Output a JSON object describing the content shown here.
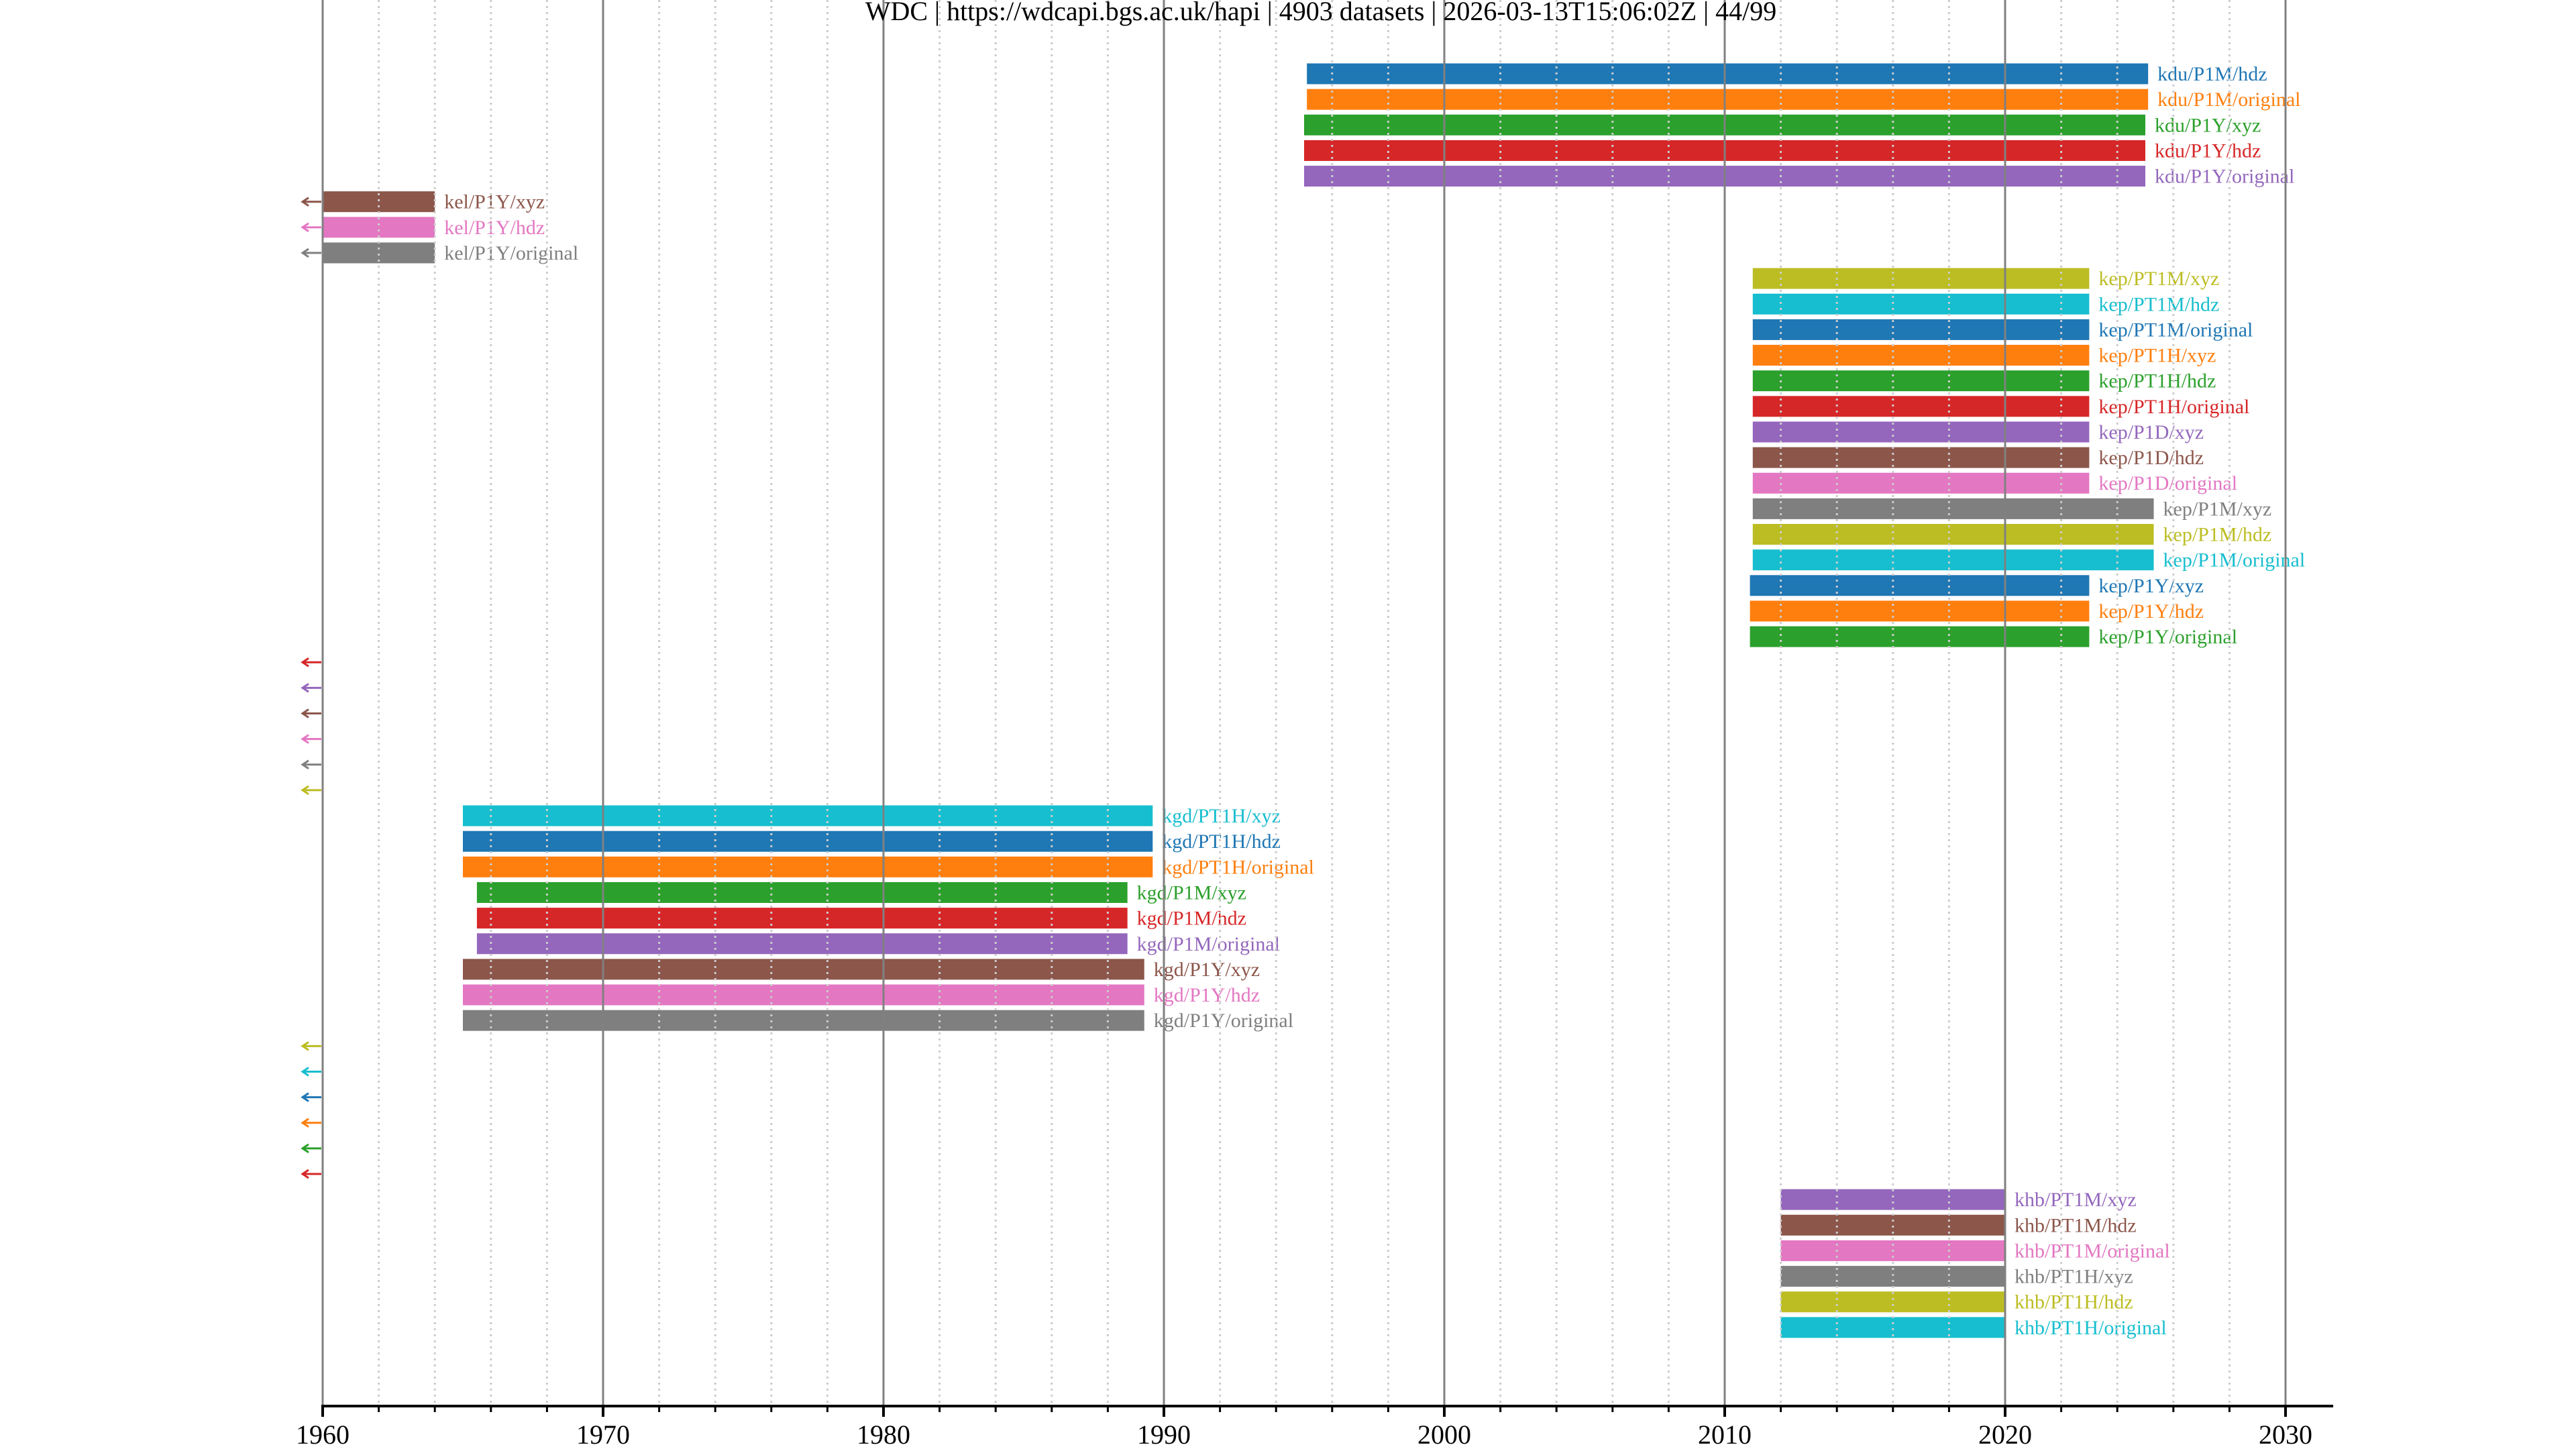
{
  "chart_data": {
    "type": "timeline",
    "title": "WDC | https://wdcapi.bgs.ac.uk/hapi | 4903 datasets | 2026-03-13T15:06:02Z | 44/99",
    "xlabel": "",
    "ylabel": "",
    "xlim": [
      1960,
      2031.7
    ],
    "x_major_ticks": [
      1960,
      1970,
      1980,
      1990,
      2000,
      2010,
      2020,
      2030
    ],
    "x_tick_labels": [
      "1960",
      "1970",
      "1980",
      "1990",
      "2000",
      "2010",
      "2020",
      "2030"
    ],
    "x_minor_step_years": 2,
    "grid": "major solid, minor dotted",
    "legend": "none (labels beside bars)",
    "before_range_marker": "left-arrow",
    "rows": [
      {
        "label": "kdu/P1M/hdz",
        "start": 1995.1,
        "end": 2025.1,
        "color": "#1f77b4"
      },
      {
        "label": "kdu/P1M/original",
        "start": 1995.1,
        "end": 2025.1,
        "color": "#ff7f0e"
      },
      {
        "label": "kdu/P1Y/xyz",
        "start": 1995.0,
        "end": 2025.0,
        "color": "#2ca02c"
      },
      {
        "label": "kdu/P1Y/hdz",
        "start": 1995.0,
        "end": 2025.0,
        "color": "#d62728"
      },
      {
        "label": "kdu/P1Y/original",
        "start": 1995.0,
        "end": 2025.0,
        "color": "#9467bd"
      },
      {
        "label": "kel/P1Y/xyz",
        "start": null,
        "end": 1964.0,
        "color": "#8c564b",
        "before_range": true
      },
      {
        "label": "kel/P1Y/hdz",
        "start": null,
        "end": 1964.0,
        "color": "#e377c2",
        "before_range": true
      },
      {
        "label": "kel/P1Y/original",
        "start": null,
        "end": 1964.0,
        "color": "#7f7f7f",
        "before_range": true
      },
      {
        "label": "kep/PT1M/xyz",
        "start": 2011.0,
        "end": 2023.0,
        "color": "#bcbd22"
      },
      {
        "label": "kep/PT1M/hdz",
        "start": 2011.0,
        "end": 2023.0,
        "color": "#17becf"
      },
      {
        "label": "kep/PT1M/original",
        "start": 2011.0,
        "end": 2023.0,
        "color": "#1f77b4"
      },
      {
        "label": "kep/PT1H/xyz",
        "start": 2011.0,
        "end": 2023.0,
        "color": "#ff7f0e"
      },
      {
        "label": "kep/PT1H/hdz",
        "start": 2011.0,
        "end": 2023.0,
        "color": "#2ca02c"
      },
      {
        "label": "kep/PT1H/original",
        "start": 2011.0,
        "end": 2023.0,
        "color": "#d62728"
      },
      {
        "label": "kep/P1D/xyz",
        "start": 2011.0,
        "end": 2023.0,
        "color": "#9467bd"
      },
      {
        "label": "kep/P1D/hdz",
        "start": 2011.0,
        "end": 2023.0,
        "color": "#8c564b"
      },
      {
        "label": "kep/P1D/original",
        "start": 2011.0,
        "end": 2023.0,
        "color": "#e377c2"
      },
      {
        "label": "kep/P1M/xyz",
        "start": 2011.0,
        "end": 2025.3,
        "color": "#7f7f7f"
      },
      {
        "label": "kep/P1M/hdz",
        "start": 2011.0,
        "end": 2025.3,
        "color": "#bcbd22"
      },
      {
        "label": "kep/P1M/original",
        "start": 2011.0,
        "end": 2025.3,
        "color": "#17becf"
      },
      {
        "label": "kep/P1Y/xyz",
        "start": 2010.9,
        "end": 2023.0,
        "color": "#1f77b4"
      },
      {
        "label": "kep/P1Y/hdz",
        "start": 2010.9,
        "end": 2023.0,
        "color": "#ff7f0e"
      },
      {
        "label": "kep/P1Y/original",
        "start": 2010.9,
        "end": 2023.0,
        "color": "#2ca02c"
      },
      {
        "label": "",
        "start": null,
        "end": null,
        "color": "#d62728",
        "before_range": true
      },
      {
        "label": "",
        "start": null,
        "end": null,
        "color": "#9467bd",
        "before_range": true
      },
      {
        "label": "",
        "start": null,
        "end": null,
        "color": "#8c564b",
        "before_range": true
      },
      {
        "label": "",
        "start": null,
        "end": null,
        "color": "#e377c2",
        "before_range": true
      },
      {
        "label": "",
        "start": null,
        "end": null,
        "color": "#7f7f7f",
        "before_range": true
      },
      {
        "label": "",
        "start": null,
        "end": null,
        "color": "#bcbd22",
        "before_range": true
      },
      {
        "label": "kgd/PT1H/xyz",
        "start": 1965.0,
        "end": 1989.6,
        "color": "#17becf"
      },
      {
        "label": "kgd/PT1H/hdz",
        "start": 1965.0,
        "end": 1989.6,
        "color": "#1f77b4"
      },
      {
        "label": "kgd/PT1H/original",
        "start": 1965.0,
        "end": 1989.6,
        "color": "#ff7f0e"
      },
      {
        "label": "kgd/P1M/xyz",
        "start": 1965.5,
        "end": 1988.7,
        "color": "#2ca02c"
      },
      {
        "label": "kgd/P1M/hdz",
        "start": 1965.5,
        "end": 1988.7,
        "color": "#d62728"
      },
      {
        "label": "kgd/P1M/original",
        "start": 1965.5,
        "end": 1988.7,
        "color": "#9467bd"
      },
      {
        "label": "kgd/P1Y/xyz",
        "start": 1965.0,
        "end": 1989.3,
        "color": "#8c564b"
      },
      {
        "label": "kgd/P1Y/hdz",
        "start": 1965.0,
        "end": 1989.3,
        "color": "#e377c2"
      },
      {
        "label": "kgd/P1Y/original",
        "start": 1965.0,
        "end": 1989.3,
        "color": "#7f7f7f"
      },
      {
        "label": "",
        "start": null,
        "end": null,
        "color": "#bcbd22",
        "before_range": true
      },
      {
        "label": "",
        "start": null,
        "end": null,
        "color": "#17becf",
        "before_range": true
      },
      {
        "label": "",
        "start": null,
        "end": null,
        "color": "#1f77b4",
        "before_range": true
      },
      {
        "label": "",
        "start": null,
        "end": null,
        "color": "#ff7f0e",
        "before_range": true
      },
      {
        "label": "",
        "start": null,
        "end": null,
        "color": "#2ca02c",
        "before_range": true
      },
      {
        "label": "",
        "start": null,
        "end": null,
        "color": "#d62728",
        "before_range": true
      },
      {
        "label": "khb/PT1M/xyz",
        "start": 2012.0,
        "end": 2020.0,
        "color": "#9467bd"
      },
      {
        "label": "khb/PT1M/hdz",
        "start": 2012.0,
        "end": 2020.0,
        "color": "#8c564b"
      },
      {
        "label": "khb/PT1M/original",
        "start": 2012.0,
        "end": 2020.0,
        "color": "#e377c2"
      },
      {
        "label": "khb/PT1H/xyz",
        "start": 2012.0,
        "end": 2020.0,
        "color": "#7f7f7f"
      },
      {
        "label": "khb/PT1H/hdz",
        "start": 2012.0,
        "end": 2020.0,
        "color": "#bcbd22"
      },
      {
        "label": "khb/PT1H/original",
        "start": 2012.0,
        "end": 2020.0,
        "color": "#17becf"
      }
    ]
  },
  "style": {
    "major_grid_color": "#808080",
    "minor_grid_color": "#cccccc",
    "axis_color": "#000000"
  }
}
